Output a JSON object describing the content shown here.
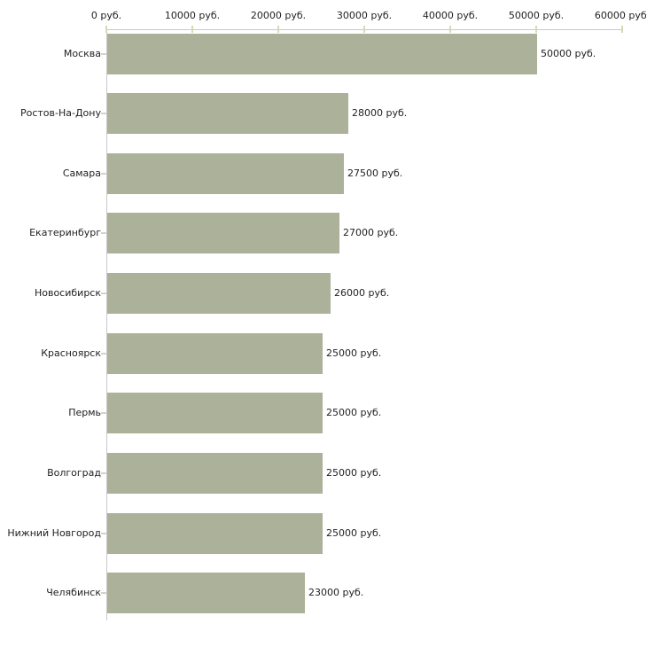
{
  "chart_data": {
    "type": "bar",
    "orientation": "horizontal",
    "title": "",
    "xlabel": "",
    "ylabel": "",
    "unit": "руб.",
    "legend": "none",
    "grid": "off",
    "categories": [
      "Москва",
      "Ростов-На-Дону",
      "Самара",
      "Екатеринбург",
      "Новосибирск",
      "Красноярск",
      "Пермь",
      "Волгоград",
      "Нижний Новгород",
      "Челябинск"
    ],
    "values": [
      50000,
      28000,
      27500,
      27000,
      26000,
      25000,
      25000,
      25000,
      25000,
      23000
    ],
    "value_labels": [
      "50000 руб.",
      "28000 руб.",
      "27500 руб.",
      "27000 руб.",
      "26000 руб.",
      "25000 руб.",
      "25000 руб.",
      "25000 руб.",
      "25000 руб.",
      "23000 руб."
    ],
    "x_axis": {
      "position": "top",
      "range": [
        0,
        60000
      ],
      "ticks": [
        0,
        10000,
        20000,
        30000,
        40000,
        50000,
        60000
      ],
      "tick_labels": [
        "0 руб.",
        "10000 руб.",
        "20000 руб.",
        "30000 руб.",
        "40000 руб.",
        "50000 руб.",
        "60000 руб."
      ]
    }
  },
  "colors": {
    "bar": "#acb299",
    "axis_line": "#c9c9c9",
    "axis_tick": "#d8d9b4",
    "category_tick": "#d6d3c4",
    "text": "#222222",
    "background": "#ffffff"
  }
}
